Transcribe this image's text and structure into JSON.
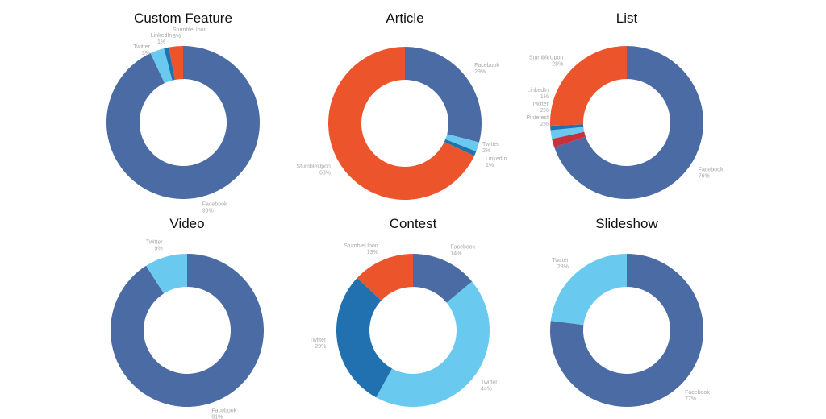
{
  "chart_data": [
    {
      "type": "pie",
      "variant": "donut",
      "title": "Custom Feature",
      "slices": [
        {
          "label": "Facebook",
          "value": 93,
          "color": "#4a6ba3"
        },
        {
          "label": "Twitter",
          "value": 3,
          "color": "#69c9ef"
        },
        {
          "label": "LinkedIn",
          "value": 1,
          "color": "#1f72b0"
        },
        {
          "label": "StumbleUpon",
          "value": 3,
          "color": "#ec542c"
        }
      ]
    },
    {
      "type": "pie",
      "variant": "donut",
      "title": "Article",
      "slices": [
        {
          "label": "Facebook",
          "value": 29,
          "color": "#4a6ba3"
        },
        {
          "label": "Twitter",
          "value": 2,
          "color": "#69c9ef"
        },
        {
          "label": "LinkedIn",
          "value": 1,
          "color": "#1f72b0"
        },
        {
          "label": "StumbleUpon",
          "value": 68,
          "color": "#ec542c"
        }
      ]
    },
    {
      "type": "pie",
      "variant": "donut",
      "title": "List",
      "slices": [
        {
          "label": "Facebook",
          "value": 76,
          "color": "#4a6ba3"
        },
        {
          "label": "Pinterest",
          "value": 2,
          "color": "#c8303a"
        },
        {
          "label": "Twitter",
          "value": 2,
          "color": "#69c9ef"
        },
        {
          "label": "LinkedIn",
          "value": 1,
          "color": "#1f72b0"
        },
        {
          "label": "StumbleUpon",
          "value": 28,
          "color": "#ec542c"
        }
      ]
    },
    {
      "type": "pie",
      "variant": "donut",
      "title": "Video",
      "slices": [
        {
          "label": "Facebook",
          "value": 91,
          "color": "#4a6ba3"
        },
        {
          "label": "Twitter",
          "value": 9,
          "color": "#69c9ef"
        }
      ]
    },
    {
      "type": "pie",
      "variant": "donut",
      "title": "Contest",
      "slices": [
        {
          "label": "Facebook",
          "value": 14,
          "color": "#4a6ba3"
        },
        {
          "label": "Twitter",
          "value": 44,
          "color": "#69c9ef"
        },
        {
          "label": "Twitter",
          "value": 29,
          "color": "#2171b0"
        },
        {
          "label": "StumbleUpon",
          "value": 13,
          "color": "#ec542c"
        }
      ]
    },
    {
      "type": "pie",
      "variant": "donut",
      "title": "Slideshow",
      "slices": [
        {
          "label": "Facebook",
          "value": 77,
          "color": "#4a6ba3"
        },
        {
          "label": "Twitter",
          "value": 23,
          "color": "#69c9ef"
        }
      ]
    }
  ]
}
